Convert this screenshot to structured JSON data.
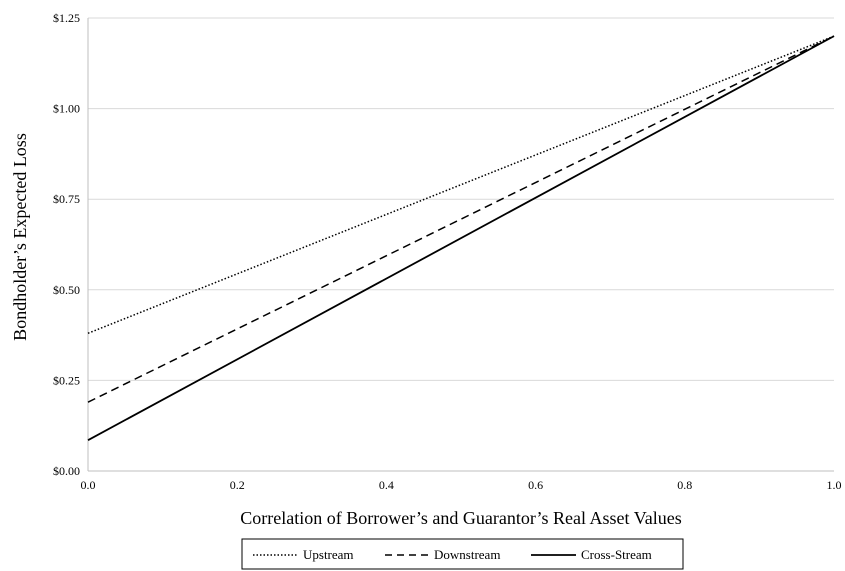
{
  "chart_data": {
    "type": "line",
    "title": "",
    "xlabel": "Correlation of Borrower’s and Guarantor’s Real Asset Values",
    "ylabel": "Bondholder’s Expected Loss",
    "xlim": [
      0.0,
      1.0
    ],
    "ylim": [
      0.0,
      1.25
    ],
    "xticks": [
      "0.0",
      "0.2",
      "0.4",
      "0.6",
      "0.8",
      "1.0"
    ],
    "yticks": [
      "$0.00",
      "$0.25",
      "$0.50",
      "$0.75",
      "$1.00",
      "$1.25"
    ],
    "grid": "horizontal",
    "legend_position": "bottom",
    "series": [
      {
        "name": "Upstream",
        "style": "dotted",
        "x": [
          0.0,
          1.0
        ],
        "y": [
          0.38,
          1.2
        ]
      },
      {
        "name": "Downstream",
        "style": "dashed",
        "x": [
          0.0,
          1.0
        ],
        "y": [
          0.19,
          1.2
        ]
      },
      {
        "name": "Cross-Stream",
        "style": "solid",
        "x": [
          0.0,
          1.0
        ],
        "y": [
          0.085,
          1.2
        ]
      }
    ]
  },
  "colors": {
    "line": "#000000",
    "grid": "#d9d9d9",
    "axis": "#bfbfbf"
  }
}
